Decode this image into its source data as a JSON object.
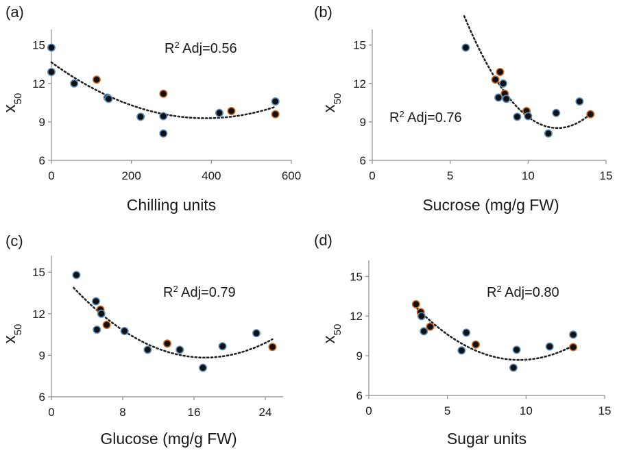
{
  "colors": {
    "point_fill": "#111111",
    "blue_edge": "#5a8fc0",
    "orange_edge": "#d2691e",
    "axis": "#8c8c8c",
    "text": "#1a1a1a"
  },
  "chart_data": [
    {
      "panel": "(a)",
      "type": "scatter",
      "xlabel": "Chilling units",
      "ylabel_main": "x",
      "ylabel_sub": "50",
      "xlim": [
        0,
        600
      ],
      "ylim": [
        6,
        16
      ],
      "xticks": [
        0,
        200,
        400,
        600
      ],
      "yticks": [
        6,
        9,
        12,
        15
      ],
      "annotation": {
        "sup": "2",
        "text": " Adj=0.56",
        "prefix": "R"
      },
      "fit": {
        "degree": 2,
        "x_range": [
          0,
          560
        ],
        "coef": [
          13.65,
          -0.02261,
          2.93e-05
        ]
      },
      "points": [
        {
          "x": 0,
          "y": 14.8,
          "edge": "blue"
        },
        {
          "x": 0,
          "y": 12.9,
          "edge": "blue"
        },
        {
          "x": 57,
          "y": 12.0,
          "edge": "blue"
        },
        {
          "x": 113,
          "y": 12.3,
          "edge": "orange"
        },
        {
          "x": 140,
          "y": 10.9,
          "edge": "blue"
        },
        {
          "x": 143,
          "y": 10.8,
          "edge": "blue"
        },
        {
          "x": 223,
          "y": 9.4,
          "edge": "blue"
        },
        {
          "x": 280,
          "y": 11.2,
          "edge": "orange"
        },
        {
          "x": 280,
          "y": 9.45,
          "edge": "blue"
        },
        {
          "x": 280,
          "y": 8.1,
          "edge": "blue"
        },
        {
          "x": 420,
          "y": 9.7,
          "edge": "blue"
        },
        {
          "x": 450,
          "y": 9.85,
          "edge": "orange"
        },
        {
          "x": 560,
          "y": 10.6,
          "edge": "blue"
        },
        {
          "x": 560,
          "y": 9.6,
          "edge": "orange"
        }
      ]
    },
    {
      "panel": "(b)",
      "type": "scatter",
      "xlabel": "Sucrose (mg/g FW)",
      "ylabel_main": "x",
      "ylabel_sub": "50",
      "xlim": [
        0,
        15
      ],
      "ylim": [
        6,
        16
      ],
      "xticks": [
        0,
        5,
        10,
        15
      ],
      "yticks": [
        6,
        9,
        12,
        15
      ],
      "annotation": {
        "sup": "2",
        "text": " Adj=0.76",
        "prefix": "R"
      },
      "fit": {
        "degree": 2,
        "x_range": [
          5.9,
          14.0
        ],
        "coef": [
          42.99,
          -5.8,
          0.244
        ]
      },
      "points": [
        {
          "x": 6.0,
          "y": 14.8,
          "edge": "blue"
        },
        {
          "x": 7.9,
          "y": 12.3,
          "edge": "orange"
        },
        {
          "x": 8.2,
          "y": 12.9,
          "edge": "orange"
        },
        {
          "x": 8.4,
          "y": 12.0,
          "edge": "blue"
        },
        {
          "x": 8.5,
          "y": 11.2,
          "edge": "orange"
        },
        {
          "x": 8.6,
          "y": 10.8,
          "edge": "blue"
        },
        {
          "x": 8.1,
          "y": 10.9,
          "edge": "blue"
        },
        {
          "x": 9.3,
          "y": 9.4,
          "edge": "blue"
        },
        {
          "x": 9.9,
          "y": 9.85,
          "edge": "orange"
        },
        {
          "x": 10.0,
          "y": 9.45,
          "edge": "blue"
        },
        {
          "x": 11.3,
          "y": 8.1,
          "edge": "blue"
        },
        {
          "x": 11.8,
          "y": 9.7,
          "edge": "blue"
        },
        {
          "x": 13.3,
          "y": 10.6,
          "edge": "blue"
        },
        {
          "x": 14.0,
          "y": 9.6,
          "edge": "orange"
        }
      ]
    },
    {
      "panel": "(c)",
      "type": "scatter",
      "xlabel": "Glucose (mg/g FW)",
      "ylabel_main": "x",
      "ylabel_sub": "50",
      "xlim": [
        0,
        26
      ],
      "ylim": [
        6,
        16
      ],
      "xticks": [
        0,
        8,
        16,
        24
      ],
      "yticks": [
        6,
        9,
        12,
        15
      ],
      "annotation": {
        "sup": "2",
        "text": " Adj=0.79",
        "prefix": "R"
      },
      "fit": {
        "degree": 2,
        "x_range": [
          2.5,
          24.8
        ],
        "coef": [
          15.73,
          -0.8,
          0.0232
        ]
      },
      "points": [
        {
          "x": 2.8,
          "y": 14.8,
          "edge": "blue"
        },
        {
          "x": 5.0,
          "y": 12.9,
          "edge": "blue"
        },
        {
          "x": 5.5,
          "y": 12.3,
          "edge": "orange"
        },
        {
          "x": 5.6,
          "y": 12.0,
          "edge": "blue"
        },
        {
          "x": 5.1,
          "y": 10.85,
          "edge": "blue"
        },
        {
          "x": 6.2,
          "y": 11.2,
          "edge": "orange"
        },
        {
          "x": 8.2,
          "y": 10.75,
          "edge": "blue"
        },
        {
          "x": 10.8,
          "y": 9.4,
          "edge": "blue"
        },
        {
          "x": 13.0,
          "y": 9.85,
          "edge": "orange"
        },
        {
          "x": 14.4,
          "y": 9.4,
          "edge": "blue"
        },
        {
          "x": 17.0,
          "y": 8.1,
          "edge": "blue"
        },
        {
          "x": 19.2,
          "y": 9.65,
          "edge": "blue"
        },
        {
          "x": 23.0,
          "y": 10.6,
          "edge": "blue"
        },
        {
          "x": 24.8,
          "y": 9.6,
          "edge": "orange"
        }
      ]
    },
    {
      "panel": "(d)",
      "type": "scatter",
      "xlabel": "Sugar units",
      "ylabel_main": "x",
      "ylabel_sub": "50",
      "xlim": [
        0,
        15
      ],
      "ylim": [
        6,
        16
      ],
      "xticks": [
        0,
        5,
        10,
        15
      ],
      "yticks": [
        6,
        9,
        12,
        15
      ],
      "annotation": {
        "sup": "2",
        "text": " Adj=0.80",
        "prefix": "R"
      },
      "fit": {
        "degree": 2,
        "x_range": [
          2.9,
          13.0
        ],
        "coef": [
          17.13,
          -1.765,
          0.0922
        ]
      },
      "points": [
        {
          "x": 3.0,
          "y": 12.9,
          "edge": "orange"
        },
        {
          "x": 3.3,
          "y": 12.3,
          "edge": "orange"
        },
        {
          "x": 3.35,
          "y": 12.0,
          "edge": "blue"
        },
        {
          "x": 3.5,
          "y": 10.85,
          "edge": "blue"
        },
        {
          "x": 3.9,
          "y": 11.2,
          "edge": "orange"
        },
        {
          "x": 5.9,
          "y": 9.4,
          "edge": "blue"
        },
        {
          "x": 6.2,
          "y": 10.75,
          "edge": "blue"
        },
        {
          "x": 6.8,
          "y": 9.85,
          "edge": "orange"
        },
        {
          "x": 9.2,
          "y": 8.1,
          "edge": "blue"
        },
        {
          "x": 9.4,
          "y": 9.45,
          "edge": "blue"
        },
        {
          "x": 11.5,
          "y": 9.7,
          "edge": "blue"
        },
        {
          "x": 13.0,
          "y": 10.6,
          "edge": "blue"
        },
        {
          "x": 13.0,
          "y": 9.65,
          "edge": "orange"
        }
      ]
    }
  ]
}
